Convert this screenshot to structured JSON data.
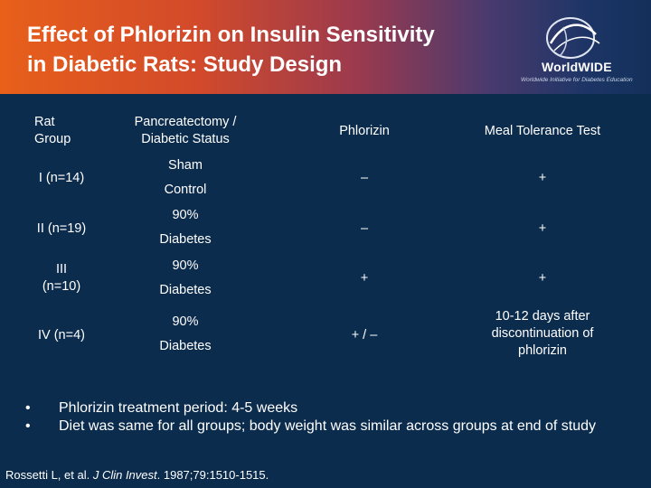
{
  "slide": {
    "title_line1": "Effect of Phlorizin on Insulin Sensitivity",
    "title_line2": "in Diabetic Rats: Study Design",
    "logo_word": "WorldWIDE",
    "logo_tagline": "Worldwide Initiative for Diabetes Education"
  },
  "colors": {
    "background": "#0c2c4d",
    "header_left": "#e8601a",
    "header_right": "#13305a",
    "text": "#ffffff"
  },
  "table": {
    "headers": {
      "group_l1": "Rat",
      "group_l2": "Group",
      "status_l1": "Pancreatectomy /",
      "status_l2": "Diabetic Status",
      "phlorizin": "Phlorizin",
      "meal": "Meal Tolerance Test"
    },
    "rows": [
      {
        "group_l1": "I (n=14)",
        "group_l2": "",
        "status_l1": "Sham",
        "status_l2": "Control",
        "phlorizin": "–",
        "meal_l1": "+",
        "meal_l2": "",
        "meal_l3": ""
      },
      {
        "group_l1": "II (n=19)",
        "group_l2": "",
        "status_l1": "90%",
        "status_l2": "Diabetes",
        "phlorizin": "–",
        "meal_l1": "+",
        "meal_l2": "",
        "meal_l3": ""
      },
      {
        "group_l1": "III",
        "group_l2": "(n=10)",
        "status_l1": "90%",
        "status_l2": "Diabetes",
        "phlorizin": "+",
        "meal_l1": "+",
        "meal_l2": "",
        "meal_l3": ""
      },
      {
        "group_l1": "IV (n=4)",
        "group_l2": "",
        "status_l1": "90%",
        "status_l2": "Diabetes",
        "phlorizin": "+ / –",
        "meal_l1": "10-12 days after",
        "meal_l2": "discontinuation of",
        "meal_l3": "phlorizin"
      }
    ]
  },
  "bullets": {
    "marker": "•",
    "items": [
      "Phlorizin treatment period: 4-5 weeks",
      "Diet was same for all groups; body weight was similar across groups at end of study"
    ]
  },
  "citation": {
    "authors": "Rossetti L, et al.",
    "journal": "J Clin Invest",
    "details": ". 1987;79:1510-1515."
  }
}
